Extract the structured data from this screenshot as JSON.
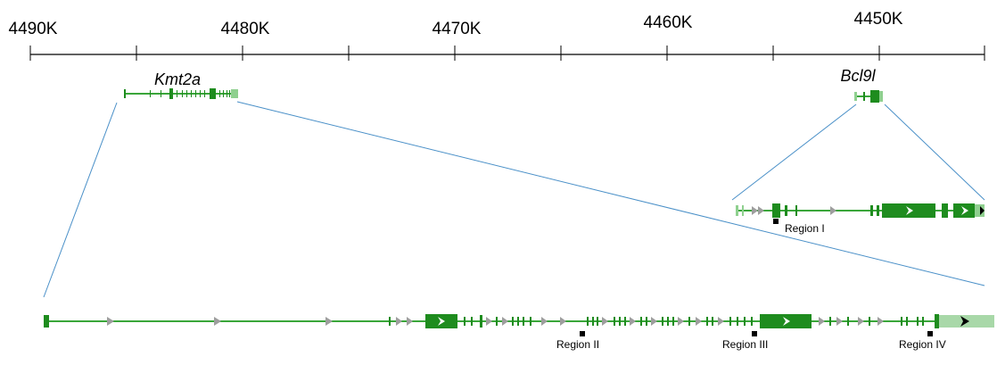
{
  "axis": {
    "tick_labels": [
      "4490K",
      "4480K",
      "4470K",
      "4460K",
      "4450K"
    ]
  },
  "genes": {
    "kmt2a": {
      "name": "Kmt2a"
    },
    "bcl9l": {
      "name": "Bcl9l"
    }
  },
  "regions": {
    "region_1": "Region I",
    "region_2": "Region II",
    "region_3": "Region III",
    "region_4": "Region IV"
  },
  "colors": {
    "gene_dark": "#1e8c1e",
    "gene_line": "#3aa63a",
    "gene_light": "#8fd08f",
    "utr_light": "#a8d8a8",
    "arrow_grey": "#9e9e9e",
    "zoom_line": "#4a90c8",
    "axis": "#000000"
  }
}
